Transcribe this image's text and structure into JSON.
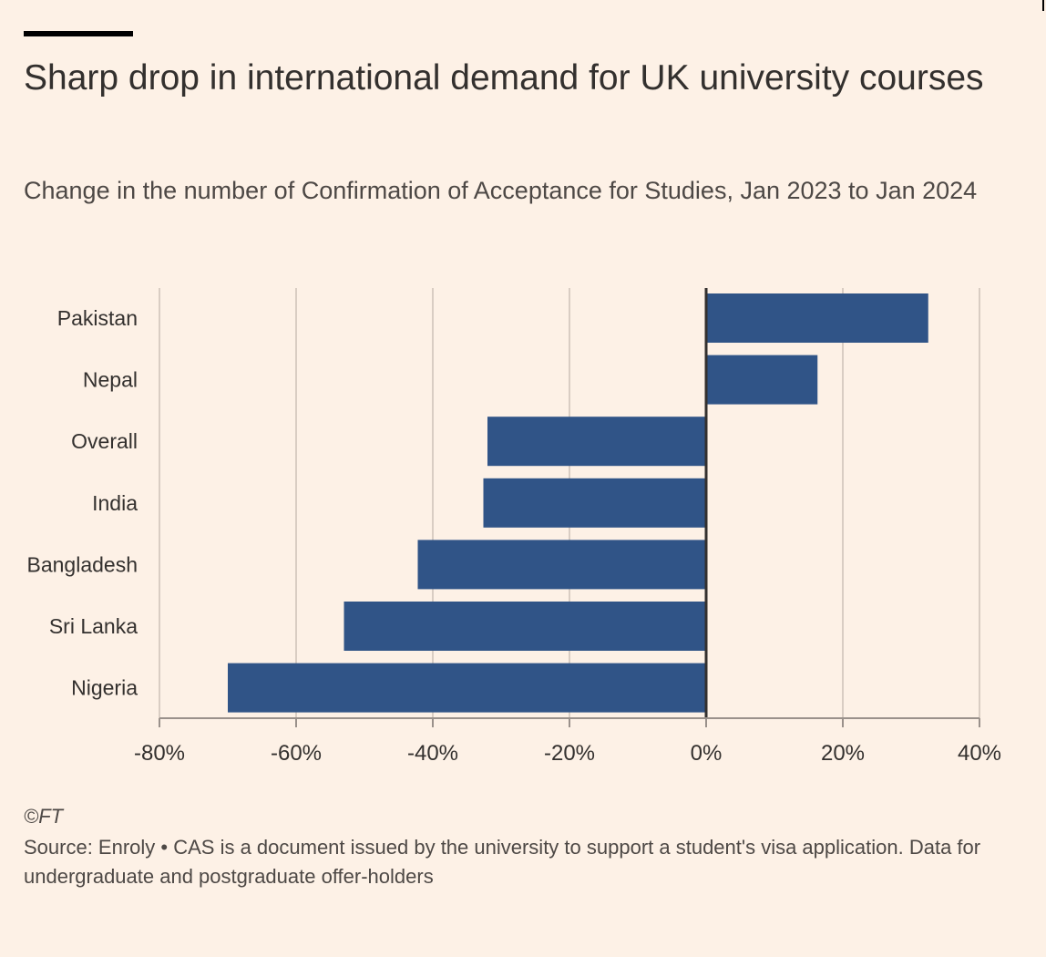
{
  "title": "Sharp drop in international demand for UK university courses",
  "subtitle": "Change in the number of Confirmation of Acceptance for Studies, Jan 2023 to Jan 2024",
  "credit": "©FT",
  "source": "Source: Enroly • CAS is a document issued by the university to support a student's visa application. Data for undergraduate and postgraduate offer-holders",
  "colors": {
    "background": "#fdf1e6",
    "bar": "#305487",
    "grid": "#d9cdc3",
    "zero_line": "#33302e",
    "axis": "#9a918b",
    "text": "#33302e"
  },
  "chart_data": {
    "type": "bar",
    "orientation": "horizontal",
    "categories": [
      "Pakistan",
      "Nepal",
      "Overall",
      "India",
      "Bangladesh",
      "Sri Lanka",
      "Nigeria"
    ],
    "values": [
      32.5,
      16.3,
      -32,
      -32.6,
      -42.2,
      -53,
      -70
    ],
    "xlim": [
      -80,
      40
    ],
    "xticks": [
      -80,
      -60,
      -40,
      -20,
      0,
      20,
      40
    ],
    "xtick_labels": [
      "-80%",
      "-60%",
      "-40%",
      "-20%",
      "0%",
      "20%",
      "40%"
    ],
    "grid": "vertical",
    "xlabel": "",
    "ylabel": ""
  }
}
